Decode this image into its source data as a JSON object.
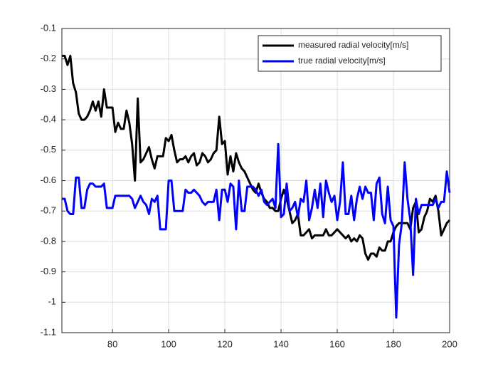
{
  "chart_data": {
    "type": "line",
    "x": [
      62,
      63,
      64,
      65,
      66,
      67,
      68,
      69,
      70,
      71,
      72,
      73,
      74,
      75,
      76,
      77,
      78,
      79,
      80,
      81,
      82,
      83,
      84,
      85,
      86,
      87,
      88,
      89,
      90,
      91,
      92,
      93,
      94,
      95,
      96,
      97,
      98,
      99,
      100,
      101,
      102,
      103,
      104,
      105,
      106,
      107,
      108,
      109,
      110,
      111,
      112,
      113,
      114,
      115,
      116,
      117,
      118,
      119,
      120,
      121,
      122,
      123,
      124,
      125,
      126,
      127,
      128,
      129,
      130,
      131,
      132,
      133,
      134,
      135,
      136,
      137,
      138,
      139,
      140,
      141,
      142,
      143,
      144,
      145,
      146,
      147,
      148,
      149,
      150,
      151,
      152,
      153,
      154,
      155,
      156,
      157,
      158,
      159,
      160,
      161,
      162,
      163,
      164,
      165,
      166,
      167,
      168,
      169,
      170,
      171,
      172,
      173,
      174,
      175,
      176,
      177,
      178,
      179,
      180,
      181,
      182,
      183,
      184,
      185,
      186,
      187,
      188,
      189,
      190,
      191,
      192,
      193,
      194,
      195,
      196,
      197,
      198,
      199,
      200
    ],
    "series": [
      {
        "name": "measured radial velocity[m/s]",
        "color": "#000000",
        "values": [
          -0.19,
          -0.19,
          -0.22,
          -0.19,
          -0.28,
          -0.31,
          -0.38,
          -0.4,
          -0.4,
          -0.39,
          -0.37,
          -0.34,
          -0.37,
          -0.34,
          -0.39,
          -0.3,
          -0.36,
          -0.36,
          -0.36,
          -0.44,
          -0.41,
          -0.43,
          -0.43,
          -0.37,
          -0.41,
          -0.48,
          -0.6,
          -0.33,
          -0.54,
          -0.53,
          -0.51,
          -0.49,
          -0.53,
          -0.56,
          -0.52,
          -0.52,
          -0.52,
          -0.46,
          -0.47,
          -0.45,
          -0.5,
          -0.54,
          -0.53,
          -0.53,
          -0.52,
          -0.54,
          -0.52,
          -0.51,
          -0.55,
          -0.54,
          -0.51,
          -0.52,
          -0.54,
          -0.53,
          -0.51,
          -0.5,
          -0.39,
          -0.48,
          -0.47,
          -0.58,
          -0.52,
          -0.57,
          -0.51,
          -0.54,
          -0.56,
          -0.57,
          -0.59,
          -0.61,
          -0.63,
          -0.64,
          -0.61,
          -0.64,
          -0.66,
          -0.67,
          -0.69,
          -0.69,
          -0.7,
          -0.7,
          -0.66,
          -0.63,
          -0.66,
          -0.7,
          -0.74,
          -0.73,
          -0.71,
          -0.78,
          -0.78,
          -0.77,
          -0.76,
          -0.79,
          -0.78,
          -0.78,
          -0.78,
          -0.78,
          -0.76,
          -0.78,
          -0.78,
          -0.77,
          -0.76,
          -0.77,
          -0.78,
          -0.79,
          -0.78,
          -0.8,
          -0.79,
          -0.8,
          -0.78,
          -0.79,
          -0.84,
          -0.86,
          -0.84,
          -0.84,
          -0.85,
          -0.82,
          -0.83,
          -0.83,
          -0.8,
          -0.8,
          -0.77,
          -0.75,
          -0.74,
          -0.74,
          -0.74,
          -0.74,
          -0.76,
          -0.69,
          -0.67,
          -0.77,
          -0.76,
          -0.72,
          -0.7,
          -0.66,
          -0.67,
          -0.65,
          -0.7,
          -0.78,
          -0.76,
          -0.74,
          -0.73
        ]
      },
      {
        "name": "true radial velocity[m/s]",
        "color": "#0000ff",
        "values": [
          -0.66,
          -0.66,
          -0.7,
          -0.71,
          -0.71,
          -0.59,
          -0.59,
          -0.69,
          -0.69,
          -0.63,
          -0.61,
          -0.61,
          -0.62,
          -0.62,
          -0.62,
          -0.61,
          -0.69,
          -0.69,
          -0.69,
          -0.65,
          -0.65,
          -0.65,
          -0.65,
          -0.65,
          -0.65,
          -0.66,
          -0.69,
          -0.67,
          -0.65,
          -0.67,
          -0.68,
          -0.71,
          -0.66,
          -0.67,
          -0.65,
          -0.76,
          -0.76,
          -0.76,
          -0.6,
          -0.6,
          -0.7,
          -0.7,
          -0.7,
          -0.7,
          -0.63,
          -0.64,
          -0.64,
          -0.63,
          -0.64,
          -0.65,
          -0.67,
          -0.68,
          -0.67,
          -0.67,
          -0.67,
          -0.63,
          -0.73,
          -0.63,
          -0.63,
          -0.67,
          -0.61,
          -0.62,
          -0.76,
          -0.6,
          -0.7,
          -0.7,
          -0.62,
          -0.62,
          -0.62,
          -0.63,
          -0.65,
          -0.63,
          -0.67,
          -0.68,
          -0.67,
          -0.66,
          -0.69,
          -0.48,
          -0.72,
          -0.71,
          -0.61,
          -0.7,
          -0.69,
          -0.67,
          -0.72,
          -0.66,
          -0.67,
          -0.6,
          -0.73,
          -0.69,
          -0.63,
          -0.69,
          -0.61,
          -0.72,
          -0.6,
          -0.64,
          -0.67,
          -0.65,
          -0.73,
          -0.67,
          -0.54,
          -0.71,
          -0.71,
          -0.65,
          -0.73,
          -0.66,
          -0.62,
          -0.66,
          -0.62,
          -0.64,
          -0.64,
          -0.73,
          -0.61,
          -0.59,
          -0.71,
          -0.74,
          -0.62,
          -0.73,
          -0.75,
          -1.05,
          -0.81,
          -0.74,
          -0.54,
          -0.66,
          -0.73,
          -0.91,
          -0.66,
          -0.71,
          -0.68,
          -0.68,
          -0.68,
          -0.68,
          -0.68,
          -0.66,
          -0.69,
          -0.67,
          -0.67,
          -0.57,
          -0.64
        ]
      }
    ],
    "xlim": [
      62,
      200
    ],
    "xticks": [
      80,
      100,
      120,
      140,
      160,
      180,
      200
    ],
    "ylim": [
      -1.1,
      -0.1
    ],
    "yticks": [
      -0.1,
      -0.2,
      -0.3,
      -0.4,
      -0.5,
      -0.6,
      -0.7,
      -0.8,
      -0.9,
      -1,
      -1.1
    ],
    "grid": true,
    "legend": "northeast"
  }
}
